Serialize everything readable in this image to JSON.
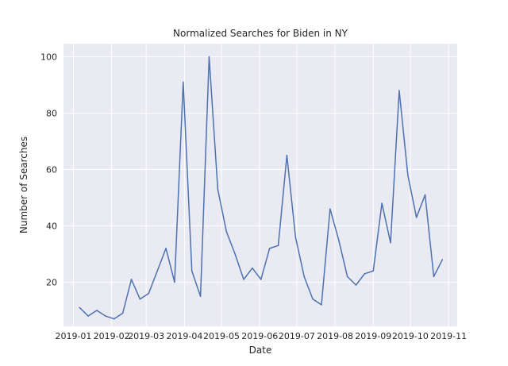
{
  "chart_data": {
    "type": "line",
    "title": "Normalized Searches for Biden in NY",
    "xlabel": "Date",
    "ylabel": "Number of Searches",
    "x_tick_labels": [
      "2019-01",
      "2019-02",
      "2019-03",
      "2019-04",
      "2019-05",
      "2019-06",
      "2019-07",
      "2019-08",
      "2019-09",
      "2019-10",
      "2019-11"
    ],
    "y_tick_labels": [
      "20",
      "40",
      "60",
      "80",
      "100"
    ],
    "y_ticks": [
      20,
      40,
      60,
      80,
      100
    ],
    "ylim": [
      4.35,
      104.65
    ],
    "xlim": [
      "2018-12-24",
      "2019-11-08"
    ],
    "grid": true,
    "line_color": "#4c72b0",
    "background_color": "#eaeaf2",
    "series": [
      {
        "x": [
          "2019-01-06",
          "2019-01-13",
          "2019-01-20",
          "2019-01-27",
          "2019-02-03",
          "2019-02-10",
          "2019-02-17",
          "2019-02-24",
          "2019-03-03",
          "2019-03-10",
          "2019-03-17",
          "2019-03-24",
          "2019-03-31",
          "2019-04-07",
          "2019-04-14",
          "2019-04-21",
          "2019-04-28",
          "2019-05-05",
          "2019-05-12",
          "2019-05-19",
          "2019-05-26",
          "2019-06-02",
          "2019-06-09",
          "2019-06-16",
          "2019-06-23",
          "2019-06-30",
          "2019-07-07",
          "2019-07-14",
          "2019-07-21",
          "2019-07-28",
          "2019-08-04",
          "2019-08-11",
          "2019-08-18",
          "2019-08-25",
          "2019-09-01",
          "2019-09-08",
          "2019-09-15",
          "2019-09-22",
          "2019-09-29",
          "2019-10-06",
          "2019-10-13",
          "2019-10-20",
          "2019-10-27"
        ],
        "values": [
          11,
          8,
          10,
          8,
          7,
          9,
          21,
          14,
          16,
          24,
          32,
          20,
          91,
          24,
          15,
          100,
          53,
          38,
          30,
          21,
          25,
          21,
          32,
          33,
          65,
          36,
          22,
          14,
          12,
          46,
          35,
          22,
          19,
          23,
          24,
          48,
          34,
          88,
          58,
          43,
          51,
          22,
          28
        ]
      }
    ]
  }
}
